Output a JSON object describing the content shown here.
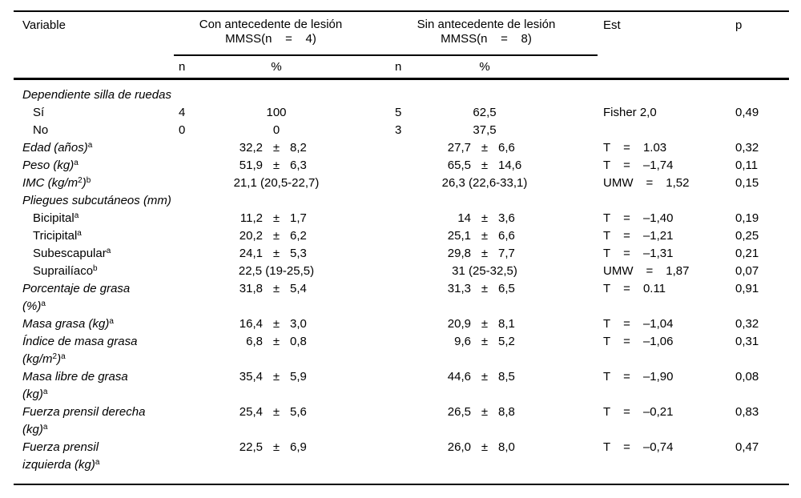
{
  "table": {
    "pm_sign": "±",
    "header": {
      "variable": "Variable",
      "group1": {
        "line1": "Con antecedente de lesión",
        "line2": "MMSS(n    =    4)"
      },
      "group2": {
        "line1": "Sin antecedente de lesión",
        "line2": "MMSS(n    =    8)"
      },
      "est": "Est",
      "p": "p",
      "sub_n": "n",
      "sub_pct": "%"
    },
    "rows": [
      {
        "label": [
          [
            {
              "t": "Dependiente silla de ruedas"
            }
          ]
        ],
        "italic": true
      },
      {
        "label": [
          [
            {
              "t": "Sí"
            }
          ]
        ],
        "indent": 1,
        "g1": {
          "n": "4",
          "pct": "100"
        },
        "g2": {
          "n": "5",
          "pct": "62,5"
        },
        "est": {
          "stat": "Fisher 2,0"
        },
        "p": "0,49"
      },
      {
        "label": [
          [
            {
              "t": "No"
            }
          ]
        ],
        "indent": 1,
        "g1": {
          "n": "0",
          "pct": "0"
        },
        "g2": {
          "n": "3",
          "pct": "37,5"
        }
      },
      {
        "label": [
          [
            {
              "t": "Edad (años)"
            },
            {
              "sup": "a"
            }
          ]
        ],
        "italic": true,
        "g1": {
          "m": "32,2",
          "s": "8,2"
        },
        "g2": {
          "m": "27,7",
          "s": "6,6"
        },
        "est": {
          "stat": "T",
          "eq": "=",
          "val": "1.03"
        },
        "p": "0,32"
      },
      {
        "label": [
          [
            {
              "t": "Peso (kg)"
            },
            {
              "sup": "a"
            }
          ]
        ],
        "italic": true,
        "g1": {
          "m": "51,9",
          "s": "6,3"
        },
        "g2": {
          "m": "65,5",
          "s": "14,6"
        },
        "est": {
          "stat": "T",
          "eq": "=",
          "val": "–1,74"
        },
        "p": "0,11"
      },
      {
        "label": [
          [
            {
              "t": "IMC (kg/m"
            },
            {
              "sup": "2"
            },
            {
              "t": ")"
            },
            {
              "sup": "b"
            }
          ]
        ],
        "italic": true,
        "g1": {
          "med": "21,1 (20,5-22,7)"
        },
        "g2": {
          "med": "26,3 (22,6-33,1)"
        },
        "est": {
          "stat": "UMW",
          "eq": "=",
          "val": "1,52"
        },
        "p": "0,15"
      },
      {
        "label": [
          [
            {
              "t": "Pliegues subcutáneos (mm)"
            }
          ]
        ],
        "italic": true
      },
      {
        "label": [
          [
            {
              "t": "Bicipital"
            },
            {
              "sup": "a"
            }
          ]
        ],
        "indent": 1,
        "g1": {
          "m": "11,2",
          "s": "1,7"
        },
        "g2": {
          "m": "14",
          "s": "3,6"
        },
        "est": {
          "stat": "T",
          "eq": "=",
          "val": "–1,40"
        },
        "p": "0,19"
      },
      {
        "label": [
          [
            {
              "t": "Tricipital"
            },
            {
              "sup": "a"
            }
          ]
        ],
        "indent": 1,
        "g1": {
          "m": "20,2",
          "s": "6,2"
        },
        "g2": {
          "m": "25,1",
          "s": "6,6"
        },
        "est": {
          "stat": "T",
          "eq": "=",
          "val": "–1,21"
        },
        "p": "0,25"
      },
      {
        "label": [
          [
            {
              "t": "Subescapular"
            },
            {
              "sup": "a"
            }
          ]
        ],
        "indent": 1,
        "g1": {
          "m": "24,1",
          "s": "5,3"
        },
        "g2": {
          "m": "29,8",
          "s": "7,7"
        },
        "est": {
          "stat": "T",
          "eq": "=",
          "val": "–1,31"
        },
        "p": "0,21"
      },
      {
        "label": [
          [
            {
              "t": "Suprailíaco"
            },
            {
              "sup": "b"
            }
          ]
        ],
        "indent": 1,
        "g1": {
          "med": "22,5 (19-25,5)"
        },
        "g2": {
          "med": "31 (25-32,5)"
        },
        "est": {
          "stat": "UMW",
          "eq": "=",
          "val": "1,87"
        },
        "p": "0,07"
      },
      {
        "label": [
          [
            {
              "t": "Porcentaje de grasa"
            }
          ],
          [
            {
              "t": "(%)"
            },
            {
              "sup": "a"
            }
          ]
        ],
        "italic": true,
        "g1": {
          "m": "31,8",
          "s": "5,4"
        },
        "g2": {
          "m": "31,3",
          "s": "6,5"
        },
        "est": {
          "stat": "T",
          "eq": "=",
          "val": "0.11"
        },
        "p": "0,91"
      },
      {
        "label": [
          [
            {
              "t": "Masa grasa (kg)"
            },
            {
              "sup": "a"
            }
          ]
        ],
        "italic": true,
        "g1": {
          "m": "16,4",
          "s": "3,0"
        },
        "g2": {
          "m": "20,9",
          "s": "8,1"
        },
        "est": {
          "stat": "T",
          "eq": "=",
          "val": "–1,04"
        },
        "p": "0,32"
      },
      {
        "label": [
          [
            {
              "t": "Índice de masa grasa"
            }
          ],
          [
            {
              "t": "(kg/m"
            },
            {
              "sup": "2"
            },
            {
              "t": ")"
            },
            {
              "sup": "a"
            }
          ]
        ],
        "italic": true,
        "g1": {
          "m": "6,8",
          "s": "0,8"
        },
        "g2": {
          "m": "9,6",
          "s": "5,2"
        },
        "est": {
          "stat": "T",
          "eq": "=",
          "val": "–1,06"
        },
        "p": "0,31"
      },
      {
        "label": [
          [
            {
              "t": "Masa libre de grasa"
            }
          ],
          [
            {
              "t": "(kg)"
            },
            {
              "sup": "a"
            }
          ]
        ],
        "italic": true,
        "g1": {
          "m": "35,4",
          "s": "5,9"
        },
        "g2": {
          "m": "44,6",
          "s": "8,5"
        },
        "est": {
          "stat": "T",
          "eq": "=",
          "val": "–1,90"
        },
        "p": "0,08"
      },
      {
        "label": [
          [
            {
              "t": "Fuerza prensil derecha"
            }
          ],
          [
            {
              "t": "(kg)"
            },
            {
              "sup": "a"
            }
          ]
        ],
        "italic": true,
        "g1": {
          "m": "25,4",
          "s": "5,6"
        },
        "g2": {
          "m": "26,5",
          "s": "8,8"
        },
        "est": {
          "stat": "T",
          "eq": "=",
          "val": "–0,21"
        },
        "p": "0,83"
      },
      {
        "label": [
          [
            {
              "t": "Fuerza prensil"
            }
          ],
          [
            {
              "t": "izquierda (kg)"
            },
            {
              "sup": "a"
            }
          ]
        ],
        "italic": true,
        "g1": {
          "m": "22,5",
          "s": "6,9"
        },
        "g2": {
          "m": "26,0",
          "s": "8,0"
        },
        "est": {
          "stat": "T",
          "eq": "=",
          "val": "–0,74"
        },
        "p": "0,47"
      }
    ]
  }
}
